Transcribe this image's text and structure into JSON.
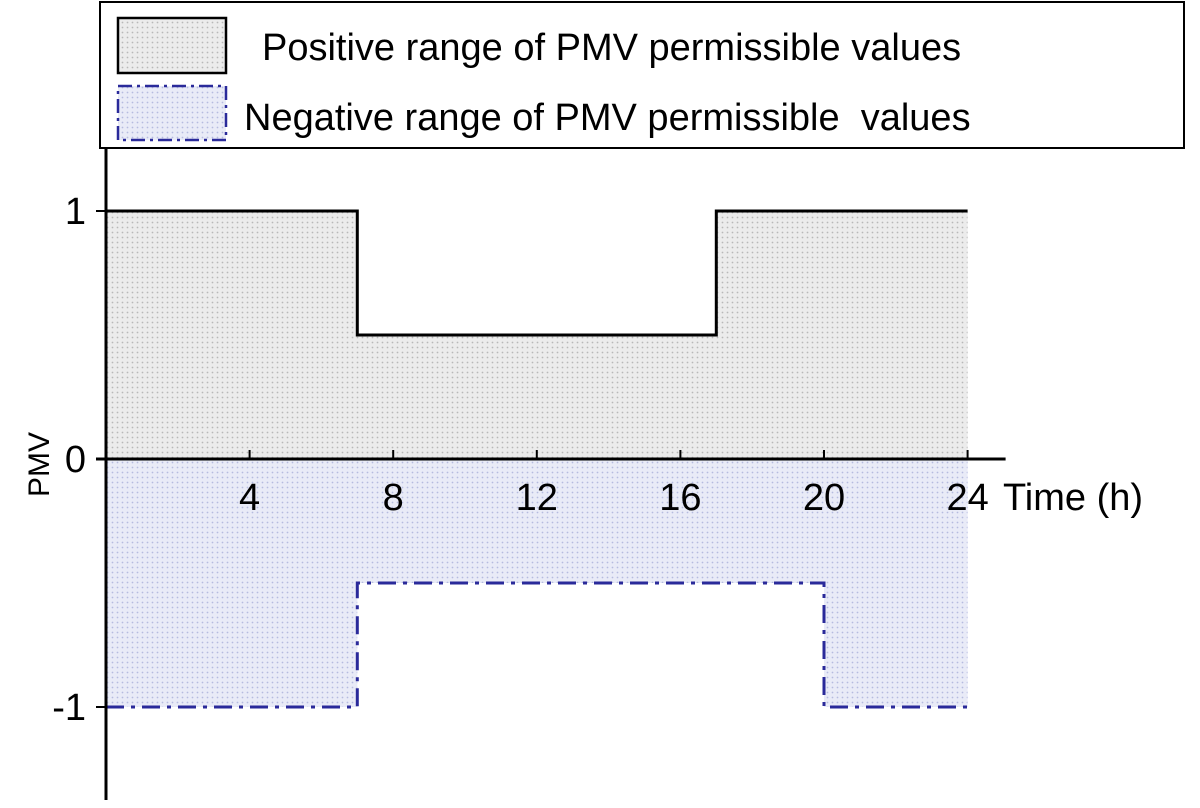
{
  "chart_data": {
    "type": "area",
    "title": "",
    "xlabel": "Time (h)",
    "ylabel": "PMV",
    "xlim": [
      -0.2,
      24
    ],
    "ylim": [
      -1.3,
      1.3
    ],
    "xticks": [
      4,
      8,
      12,
      16,
      20,
      24
    ],
    "yticks": [
      1,
      0,
      -1
    ],
    "grid": false,
    "legend_position": "top",
    "series": [
      {
        "name": "Positive range of PMV permissible values",
        "style": "solid",
        "color": "#000000",
        "fill": "#e6e6e6",
        "x": [
          0,
          7,
          7,
          17,
          17,
          24
        ],
        "y": [
          1,
          1,
          0.5,
          0.5,
          1,
          1
        ]
      },
      {
        "name": "Negative range of PMV permissible  values",
        "style": "dash-dot",
        "color": "#2a2a9a",
        "fill": "#e4e6f5",
        "x": [
          0,
          7,
          7,
          20,
          20,
          24
        ],
        "y": [
          -1,
          -1,
          -0.5,
          -0.5,
          -1,
          -1
        ]
      }
    ]
  }
}
